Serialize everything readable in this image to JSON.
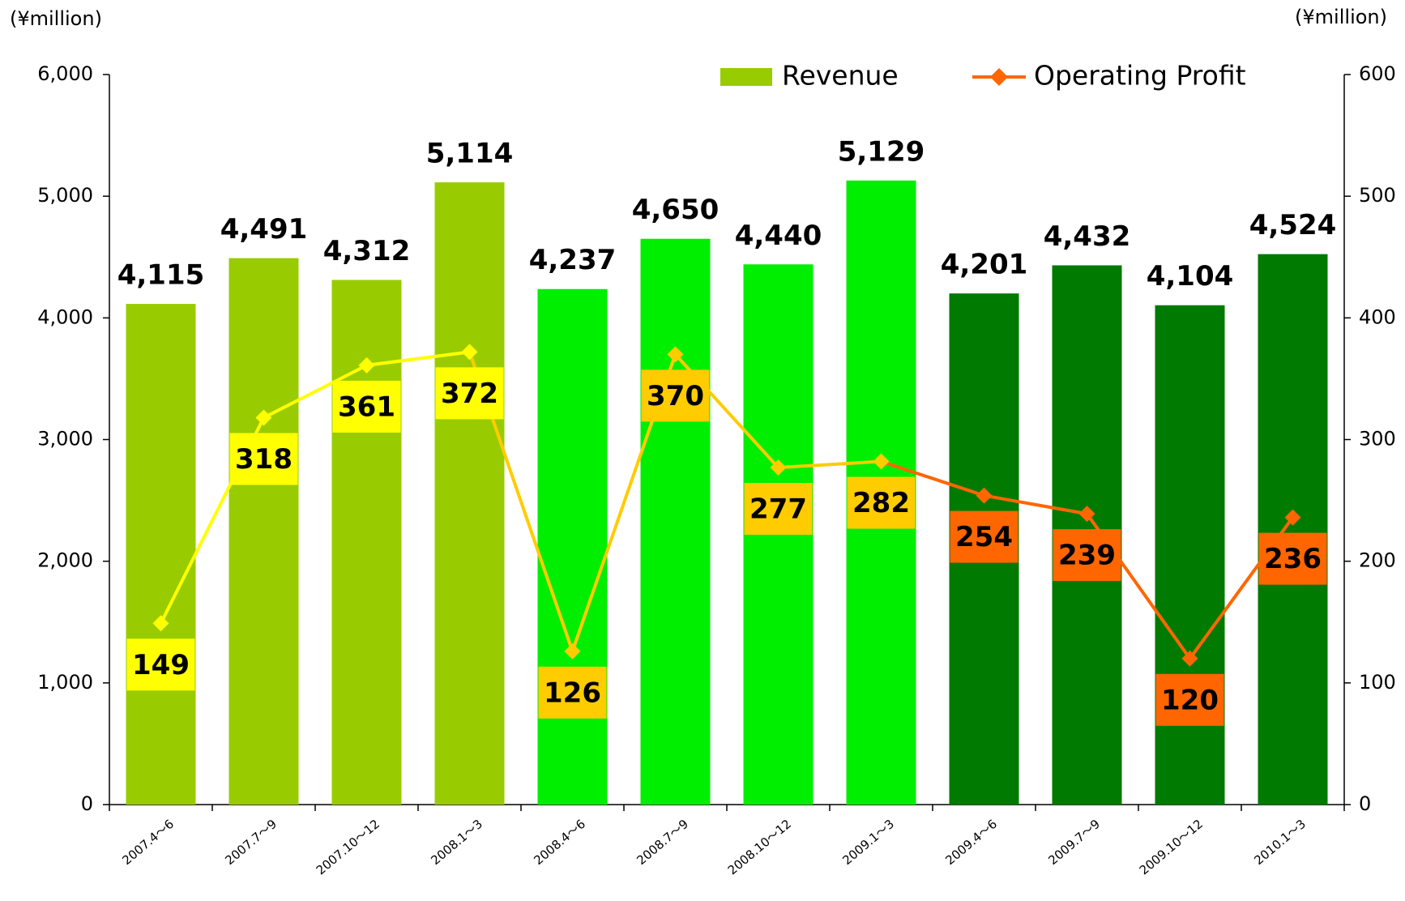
{
  "chart_data": {
    "type": "bar_line",
    "y_label": "(¥million)",
    "y2_label": "(¥million)",
    "categories": [
      "2007.4～6",
      "2007.7～9",
      "2007.10～12",
      "2008.1～3",
      "2008.4～6",
      "2008.7～9",
      "2008.10～12",
      "2009.1～3",
      "2009.4～6",
      "2009.7～9",
      "2009.10～12",
      "2010.1～3"
    ],
    "series": [
      {
        "name": "Revenue",
        "type": "bar",
        "color": "#99cc00",
        "point_colors": [
          "#99cc00",
          "#99cc00",
          "#99cc00",
          "#99cc00",
          "#00ee00",
          "#00ee00",
          "#00ee00",
          "#00ee00",
          "#007a00",
          "#007a00",
          "#007a00",
          "#007a00"
        ],
        "values": [
          4115,
          4491,
          4312,
          5114,
          4237,
          4650,
          4440,
          5129,
          4201,
          4432,
          4104,
          4524
        ],
        "value_labels": [
          "4,115",
          "4,491",
          "4,312",
          "5,114",
          "4,237",
          "4,650",
          "4,440",
          "5,129",
          "4,201",
          "4,432",
          "4,104",
          "4,524"
        ]
      },
      {
        "name": "Operating Profit",
        "type": "line",
        "axis": "y2",
        "color": "#ff6600",
        "point_colors": [
          "#ffff00",
          "#ffff00",
          "#ffff00",
          "#ffff00",
          "#ffcc00",
          "#ffcc00",
          "#ffcc00",
          "#ffcc00",
          "#ff6600",
          "#ff6600",
          "#ff6600",
          "#ff6600"
        ],
        "values": [
          149,
          318,
          361,
          372,
          126,
          370,
          277,
          282,
          254,
          239,
          120,
          236
        ]
      }
    ],
    "ylim": [
      0,
      6000
    ],
    "yticks": [
      0,
      {
        "value": 1000,
        "label": "1,000"
      },
      {
        "value": 2000,
        "label": "2,000"
      },
      {
        "value": 3000,
        "label": "3,000"
      },
      {
        "value": 4000,
        "label": "4,000"
      },
      {
        "value": 5000,
        "label": "5,000"
      },
      {
        "value": 6000,
        "label": "6,000"
      }
    ],
    "y2lim": [
      0,
      600
    ],
    "y2ticks": [
      0,
      100,
      200,
      300,
      400,
      500,
      600
    ],
    "legend": "top-right"
  }
}
